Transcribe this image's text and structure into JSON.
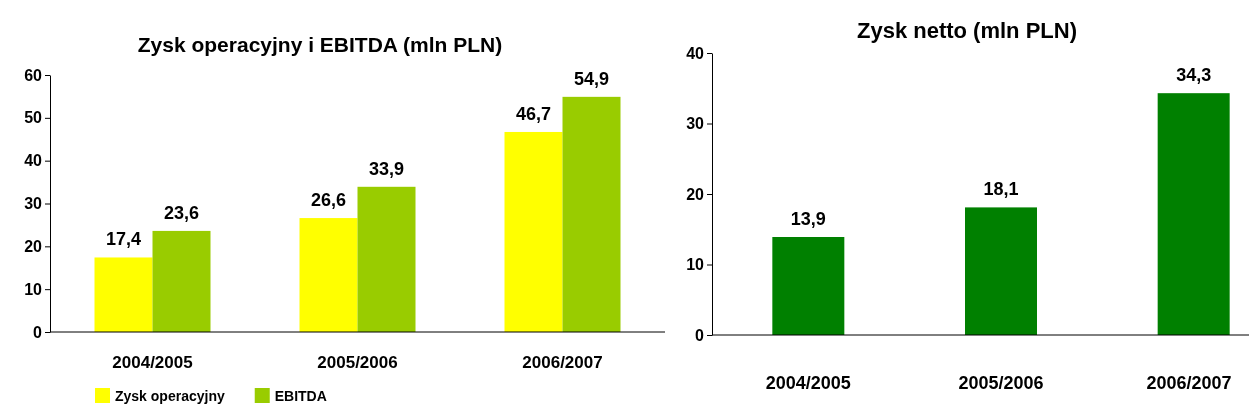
{
  "chart_data": [
    {
      "type": "bar",
      "title": "Zysk operacyjny i EBITDA (mln PLN)",
      "categories": [
        "2004/2005",
        "2005/2006",
        "2006/2007"
      ],
      "series": [
        {
          "name": "Zysk operacyjny",
          "color": "#ffff00",
          "values": [
            17.4,
            26.6,
            46.7
          ],
          "value_labels": [
            "17,4",
            "26,6",
            "46,7"
          ]
        },
        {
          "name": "EBITDA",
          "color": "#99cc00",
          "values": [
            23.6,
            33.9,
            54.9
          ],
          "value_labels": [
            "23,6",
            "33,9",
            "54,9"
          ]
        }
      ],
      "ylim": [
        0,
        60
      ],
      "yticks": [
        0,
        10,
        20,
        30,
        40,
        50,
        60
      ],
      "grid": false,
      "legend": "bottom"
    },
    {
      "type": "bar",
      "title": "Zysk netto (mln PLN)",
      "categories": [
        "2004/2005",
        "2005/2006",
        "2006/2007"
      ],
      "series": [
        {
          "color": "#008000",
          "values": [
            13.9,
            18.1,
            34.3
          ],
          "value_labels": [
            "13,9",
            "18,1",
            "34,3"
          ]
        }
      ],
      "ylim": [
        0,
        40
      ],
      "yticks": [
        0,
        10,
        20,
        30,
        40
      ],
      "grid": false,
      "legend": false
    }
  ]
}
